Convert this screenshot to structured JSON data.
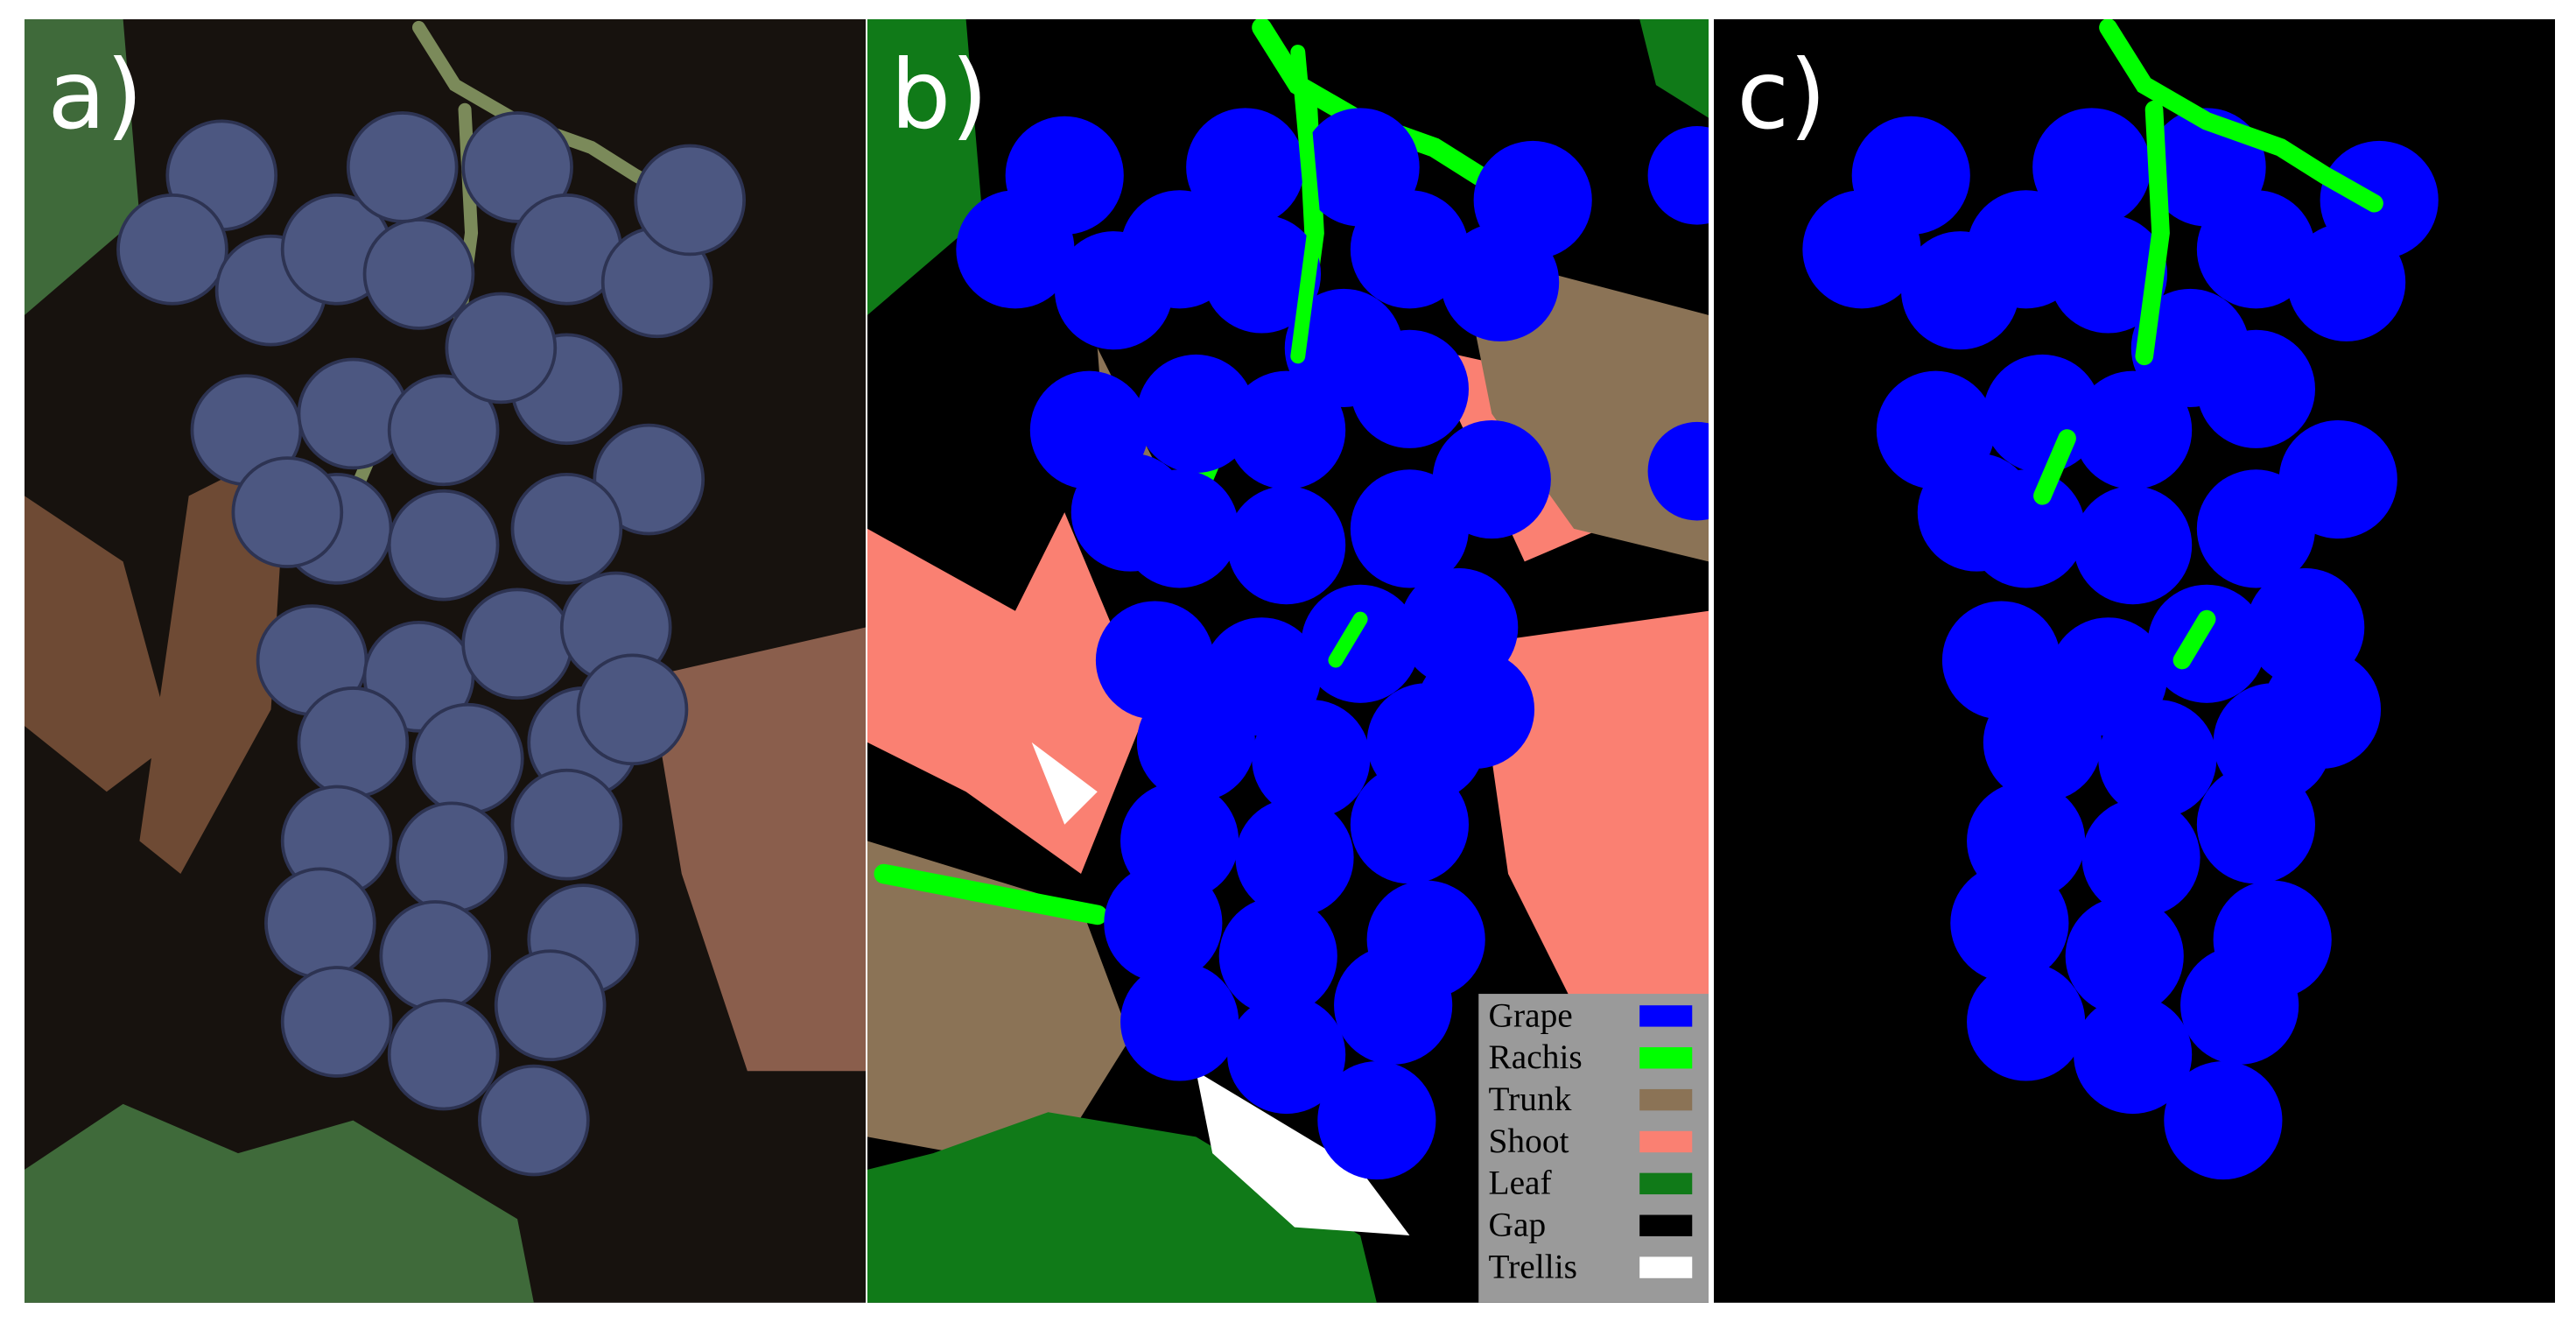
{
  "panels": [
    {
      "label": "a)"
    },
    {
      "label": "b)"
    },
    {
      "label": "c)"
    }
  ],
  "legend": {
    "items": [
      {
        "name": "Grape",
        "color": "#0000ff"
      },
      {
        "name": "Rachis",
        "color": "#00ff00"
      },
      {
        "name": "Trunk",
        "color": "#8b7356"
      },
      {
        "name": "Shoot",
        "color": "#fa8072"
      },
      {
        "name": "Leaf",
        "color": "#107a18"
      },
      {
        "name": "Gap",
        "color": "#000000"
      },
      {
        "name": "Trellis",
        "color": "#ffffff"
      }
    ]
  }
}
